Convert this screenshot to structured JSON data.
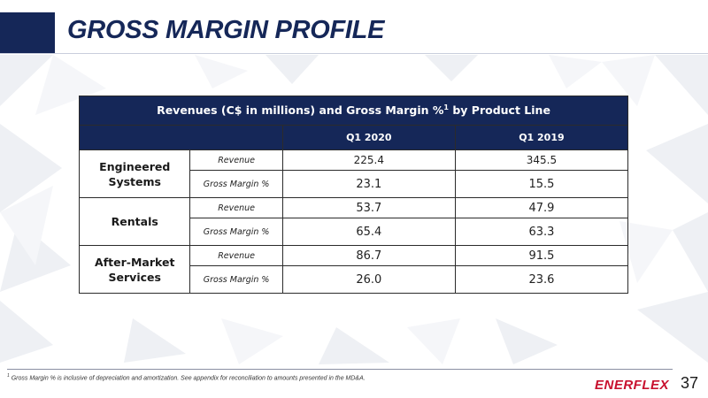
{
  "slide": {
    "title": "GROSS MARGIN PROFILE",
    "page_number": "37",
    "logo_text": "ENERFLEX",
    "accent_color": "#152758",
    "logo_color": "#c8102e"
  },
  "table": {
    "caption": "Revenues (C$ in millions) and Gross Margin %",
    "caption_sup": "1",
    "caption_suffix": " by Product Line",
    "columns": [
      "Q1 2020",
      "Q1 2019"
    ],
    "groups": [
      {
        "name": "Engineered Systems",
        "rows": [
          {
            "metric": "Revenue",
            "q1_2020": "225.4",
            "q1_2019": "345.5"
          },
          {
            "metric": "Gross Margin %",
            "q1_2020": "23.1",
            "q1_2019": "15.5"
          }
        ]
      },
      {
        "name": "Rentals",
        "rows": [
          {
            "metric": "Revenue",
            "q1_2020": "53.7",
            "q1_2019": "47.9"
          },
          {
            "metric": "Gross Margin %",
            "q1_2020": "65.4",
            "q1_2019": "63.3"
          }
        ]
      },
      {
        "name": "After-Market Services",
        "rows": [
          {
            "metric": "Revenue",
            "q1_2020": "86.7",
            "q1_2019": "91.5"
          },
          {
            "metric": "Gross Margin %",
            "q1_2020": "26.0",
            "q1_2019": "23.6"
          }
        ]
      }
    ]
  },
  "footnote": {
    "marker": "1",
    "text": " Gross Margin % is inclusive of depreciation and amortization. See appendix for reconciliation to amounts presented in the MD&A."
  }
}
